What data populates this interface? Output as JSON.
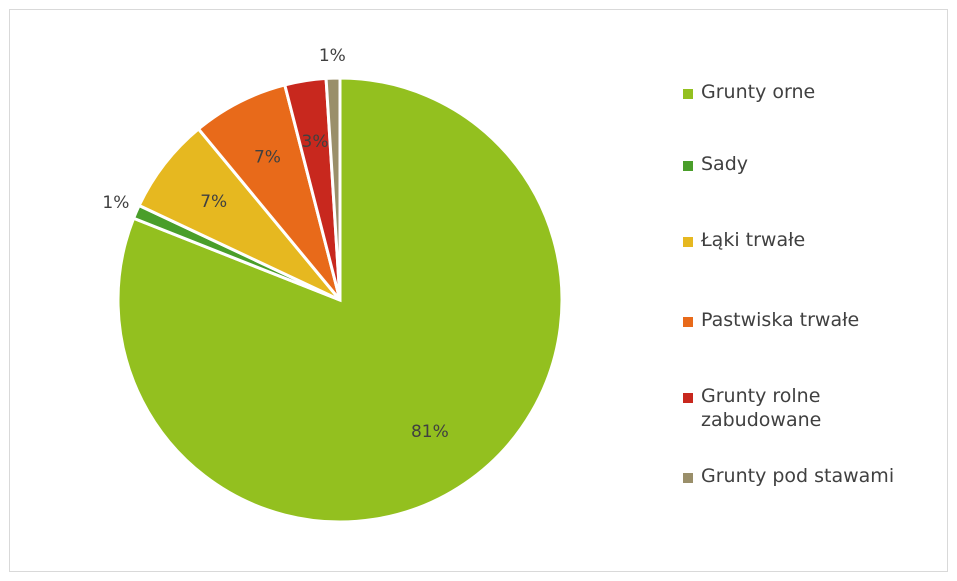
{
  "chart_data": {
    "type": "pie",
    "categories": [
      "Grunty orne",
      "Sady",
      "Łąki trwałe",
      "Pastwiska trwałe",
      "Grunty rolne zabudowane",
      "Grunty pod stawami"
    ],
    "values": [
      81,
      1,
      7,
      7,
      3,
      1
    ],
    "value_labels": [
      "81%",
      "1%",
      "7%",
      "7%",
      "3%",
      "1%"
    ],
    "colors": [
      "#93c01f",
      "#4a9e2a",
      "#e6b820",
      "#e86a1a",
      "#c8281e",
      "#9a8f6a"
    ],
    "legend": "right"
  }
}
